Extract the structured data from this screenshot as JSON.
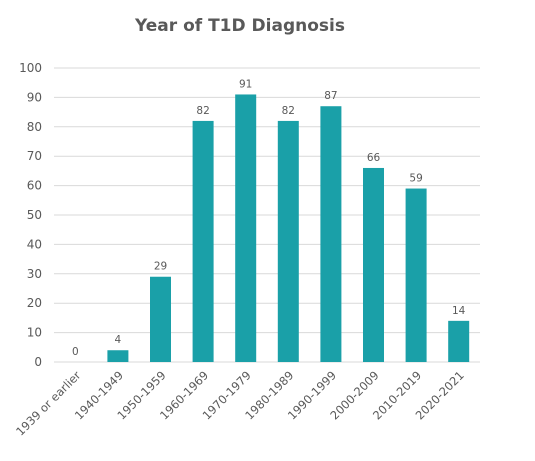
{
  "chart_data": {
    "type": "bar",
    "title": "Year of T1D Diagnosis",
    "categories": [
      "1939 or earlier",
      "1940-1949",
      "1950-1959",
      "1960-1969",
      "1970-1979",
      "1980-1989",
      "1990-1999",
      "2000-2009",
      "2010-2019",
      "2020-2021"
    ],
    "values": [
      0,
      4,
      29,
      82,
      91,
      82,
      87,
      66,
      59,
      14
    ],
    "ylim": [
      0,
      100
    ],
    "yticks": [
      0,
      10,
      20,
      30,
      40,
      50,
      60,
      70,
      80,
      90,
      100
    ],
    "grid": true,
    "legend": "none",
    "colors": {
      "bar": "#1aa0a8",
      "grid": "#d9d9d9",
      "text": "#595959"
    }
  }
}
